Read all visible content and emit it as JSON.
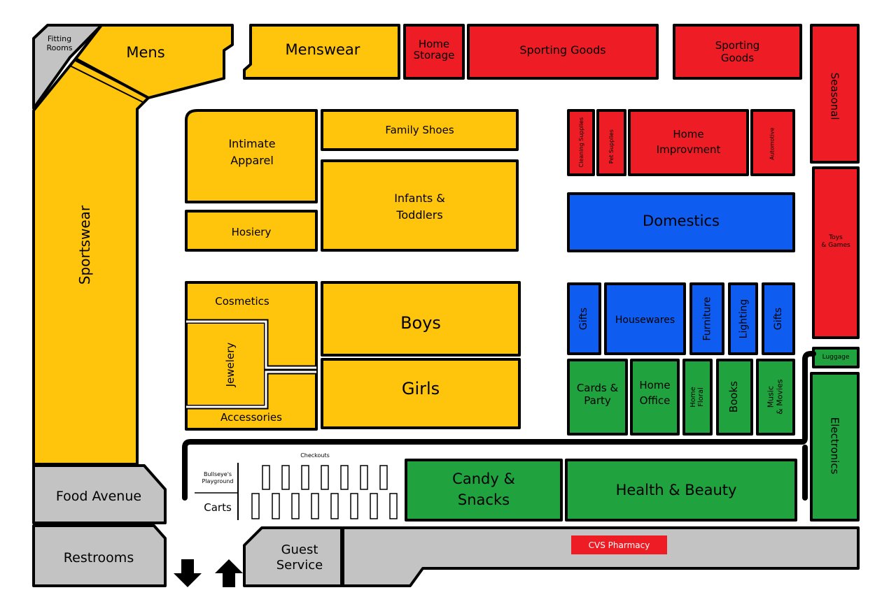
{
  "sections": {
    "fitting_rooms": "Fitting\nRooms",
    "mens": "Mens",
    "menswear": "Menswear",
    "home_storage": "Home\nStorage",
    "sporting_goods_1": "Sporting Goods",
    "sporting_goods_2": "Sporting\nGoods",
    "seasonal": "Seasonal",
    "sportswear": "Sportswear",
    "intimate_apparel": "Intimate\nApparel",
    "family_shoes": "Family Shoes",
    "infants_toddlers": "Infants &\nToddlers",
    "hosiery": "Hosiery",
    "cleaning_supplies": "Cleaning Supplies",
    "pet_supplies": "Pet Supplies",
    "home_improvement": "Home\nImprovment",
    "automotive": "Automotive",
    "domestics": "Domestics",
    "toys_games": "Toys\n& Games",
    "cosmetics": "Cosmetics",
    "jewelery": "Jewelery",
    "accessories": "Accessories",
    "boys": "Boys",
    "girls": "Girls",
    "gifts_1": "Gifts",
    "housewares": "Housewares",
    "furniture": "Furniture",
    "lighting": "Lighting",
    "gifts_2": "Gifts",
    "luggage": "Luggage",
    "cards_party": "Cards &\nParty",
    "home_office": "Home\nOffice",
    "home_floral": "Home\nFloral",
    "books": "Books",
    "music_movies": "Music\n& Movies",
    "electronics": "Electronics",
    "checkouts": "Checkouts",
    "bullseyes_playground": "Bullseye's\nPlayground",
    "carts": "Carts",
    "candy_snacks": "Candy &\nSnacks",
    "health_beauty": "Health & Beauty",
    "food_avenue": "Food Avenue",
    "restrooms": "Restrooms",
    "guest_service": "Guest\nService",
    "cvs_pharmacy": "CVS Pharmacy"
  },
  "colors": {
    "apparel": "#FFC40C",
    "hardlines": "#EE1C25",
    "home": "#0F5CF0",
    "misc": "#20A33E",
    "services": "#C3C3C3"
  },
  "icons": {
    "exit": "arrow-down-icon",
    "entrance": "arrow-up-icon"
  }
}
